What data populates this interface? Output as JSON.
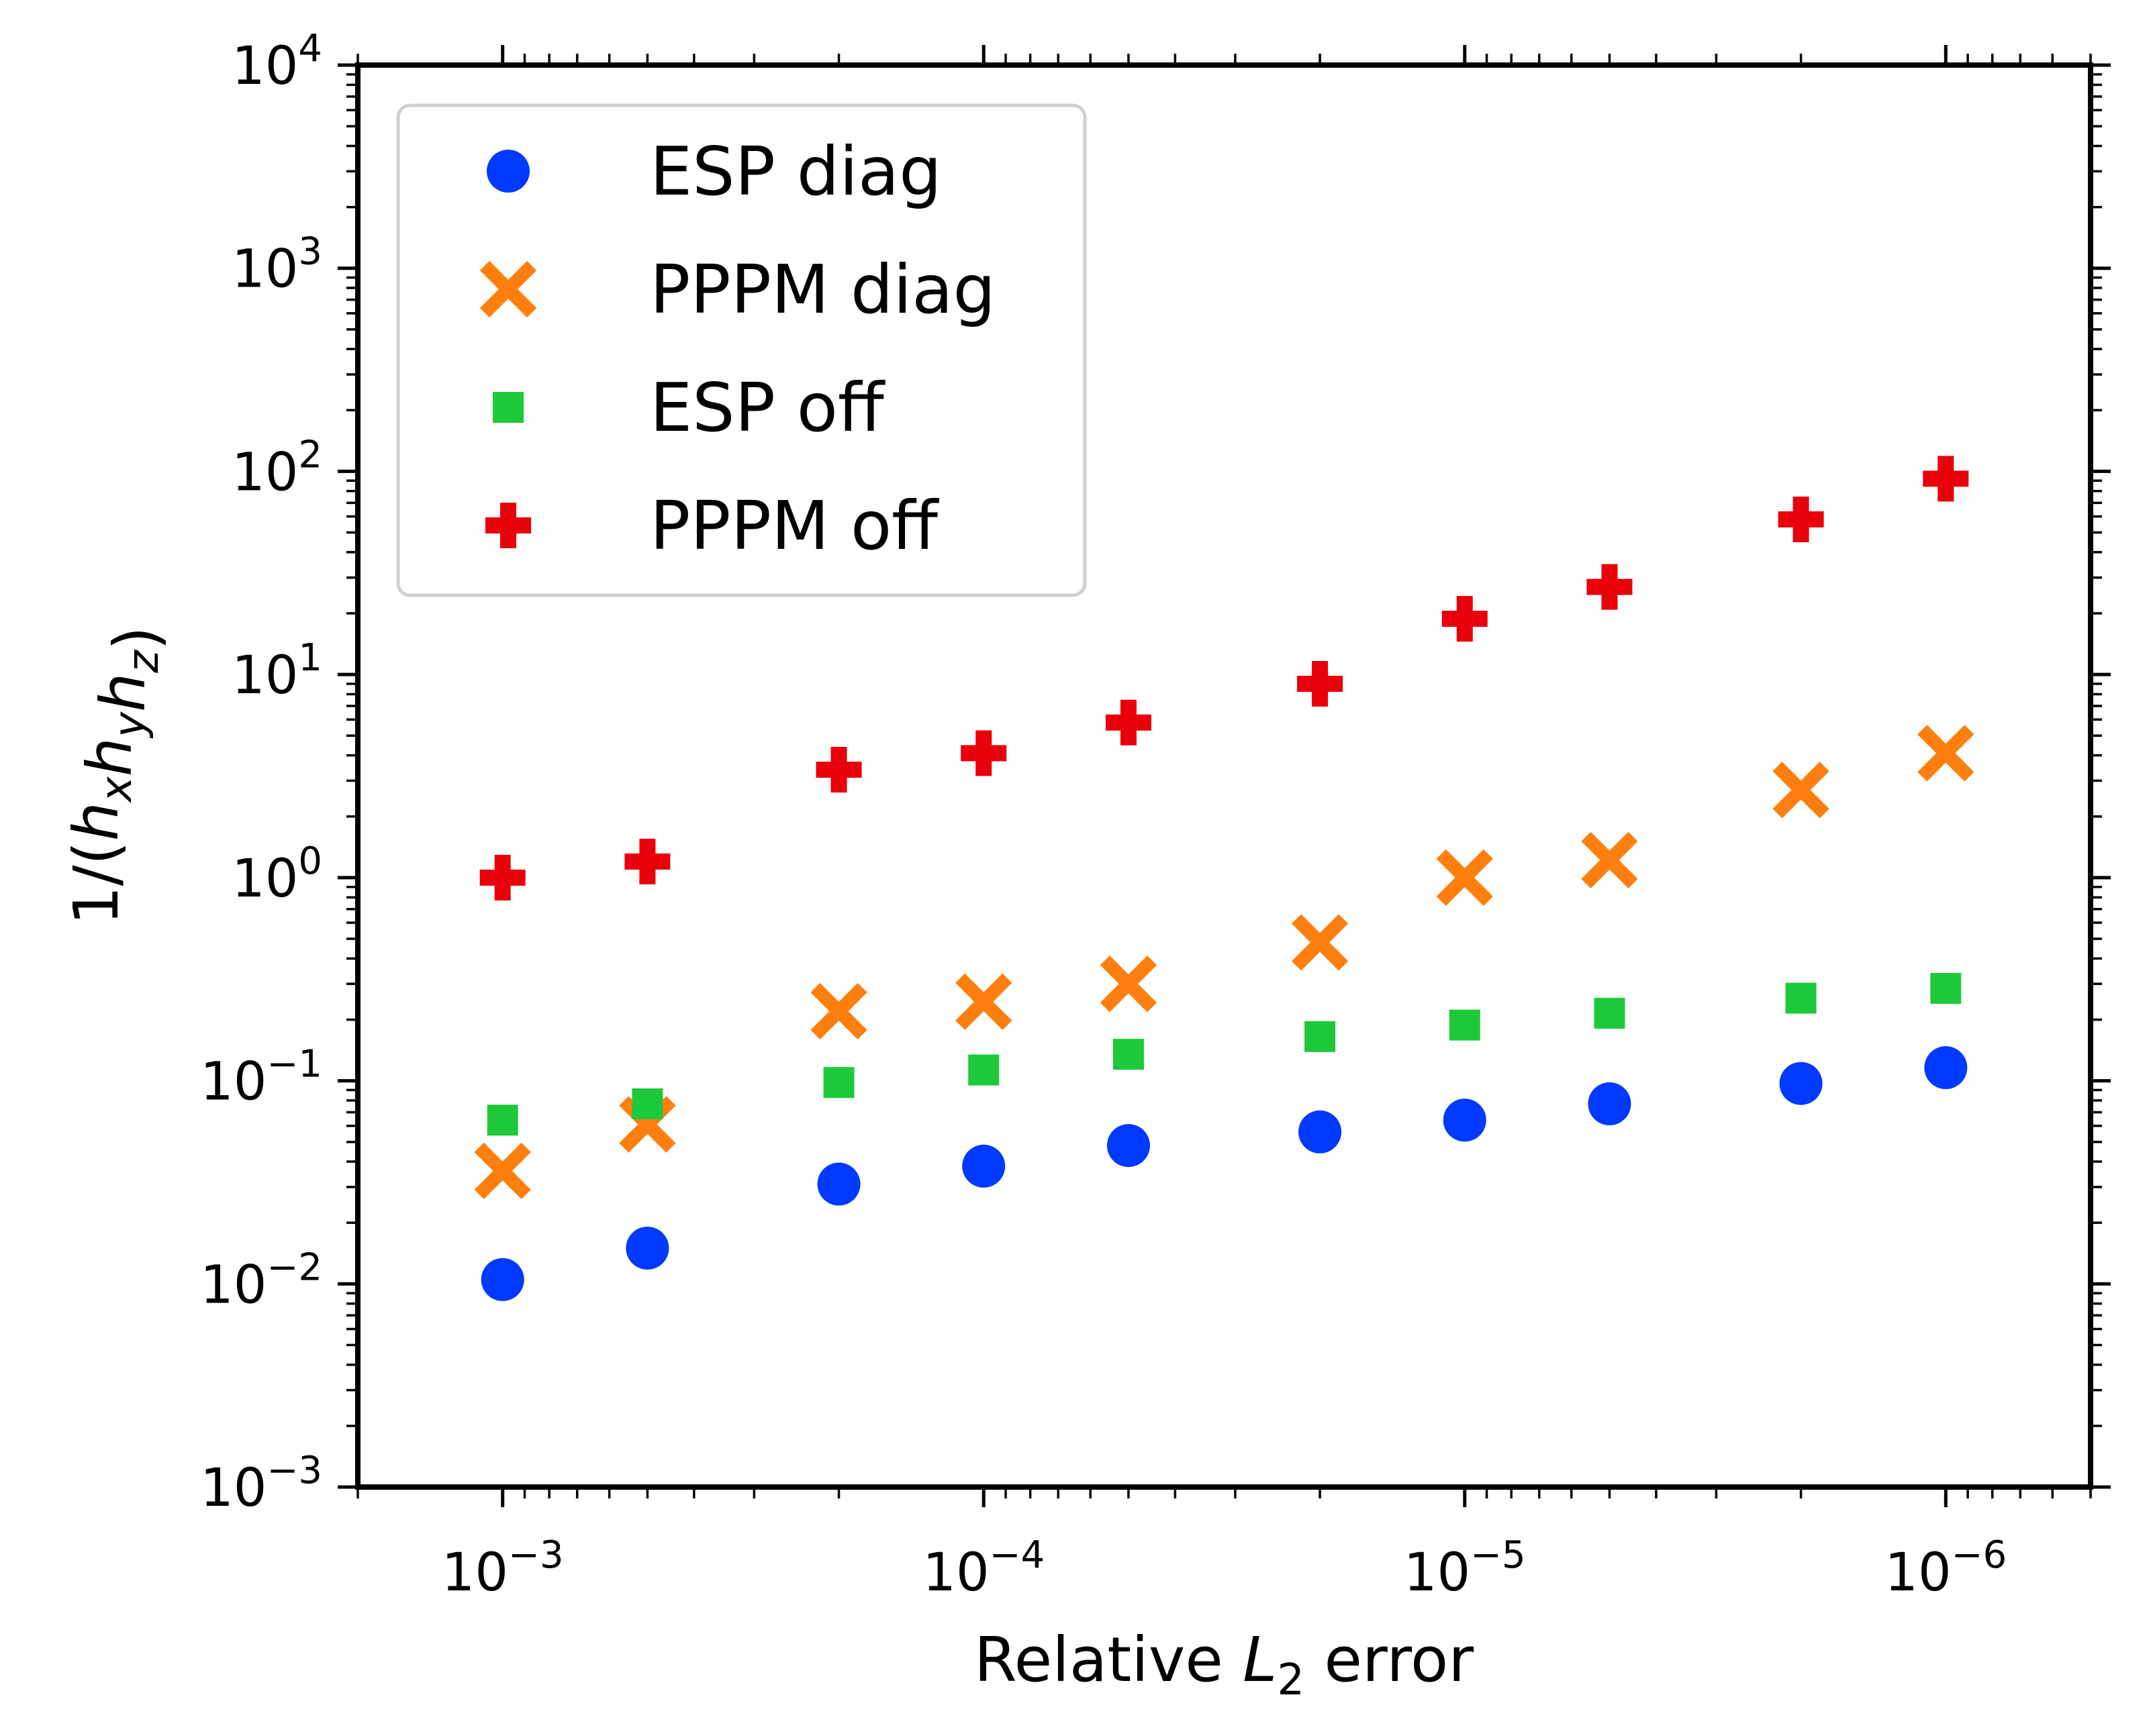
{
  "chart_data": {
    "type": "scatter",
    "x_scale": "log",
    "y_scale": "log",
    "x_inverted": true,
    "x": [
      0.001,
      0.0005,
      0.0002,
      0.0001,
      5e-05,
      2e-05,
      1e-05,
      5e-06,
      2e-06,
      1e-06
    ],
    "xlim": [
      0.002,
      5e-07
    ],
    "ylim": [
      0.001,
      10000
    ],
    "x_ticks": [
      {
        "value": 0.001,
        "base": "10",
        "exp": "−3"
      },
      {
        "value": 0.0001,
        "base": "10",
        "exp": "−4"
      },
      {
        "value": 1e-05,
        "base": "10",
        "exp": "−5"
      },
      {
        "value": 1e-06,
        "base": "10",
        "exp": "−6"
      }
    ],
    "y_ticks": [
      {
        "value": 0.001,
        "base": "10",
        "exp": "−3"
      },
      {
        "value": 0.01,
        "base": "10",
        "exp": "−2"
      },
      {
        "value": 0.1,
        "base": "10",
        "exp": "−1"
      },
      {
        "value": 1,
        "base": "10",
        "exp": "0"
      },
      {
        "value": 10,
        "base": "10",
        "exp": "1"
      },
      {
        "value": 100,
        "base": "10",
        "exp": "2"
      },
      {
        "value": 1000,
        "base": "10",
        "exp": "3"
      },
      {
        "value": 10000,
        "base": "10",
        "exp": "4"
      }
    ],
    "xlabel": {
      "prefix": "Relative ",
      "var": "L",
      "sub": "2",
      "suffix": " error"
    },
    "ylabel": {
      "text": "1/(h",
      "parts": [
        [
          "x"
        ],
        [
          "y"
        ],
        [
          "z"
        ]
      ]
    },
    "legend_position": "top-left",
    "series": [
      {
        "name": "ESP diag",
        "marker": "circle",
        "color": "#0039ff",
        "values": [
          0.0105,
          0.015,
          0.031,
          0.038,
          0.048,
          0.056,
          0.064,
          0.077,
          0.097,
          0.116
        ]
      },
      {
        "name": "PPPM diag",
        "marker": "x",
        "color": "#ff7f0e",
        "values": [
          0.036,
          0.061,
          0.22,
          0.245,
          0.3,
          0.48,
          1.0,
          1.22,
          2.7,
          4.1
        ]
      },
      {
        "name": "ESP off",
        "marker": "square",
        "color": "#1dc939",
        "values": [
          0.064,
          0.077,
          0.098,
          0.113,
          0.135,
          0.165,
          0.188,
          0.215,
          0.255,
          0.285
        ]
      },
      {
        "name": "PPPM off",
        "marker": "plus",
        "color": "#e8000b",
        "values": [
          1.0,
          1.2,
          3.4,
          4.1,
          5.8,
          9.0,
          18.8,
          27.0,
          58.0,
          92.0
        ]
      }
    ]
  }
}
